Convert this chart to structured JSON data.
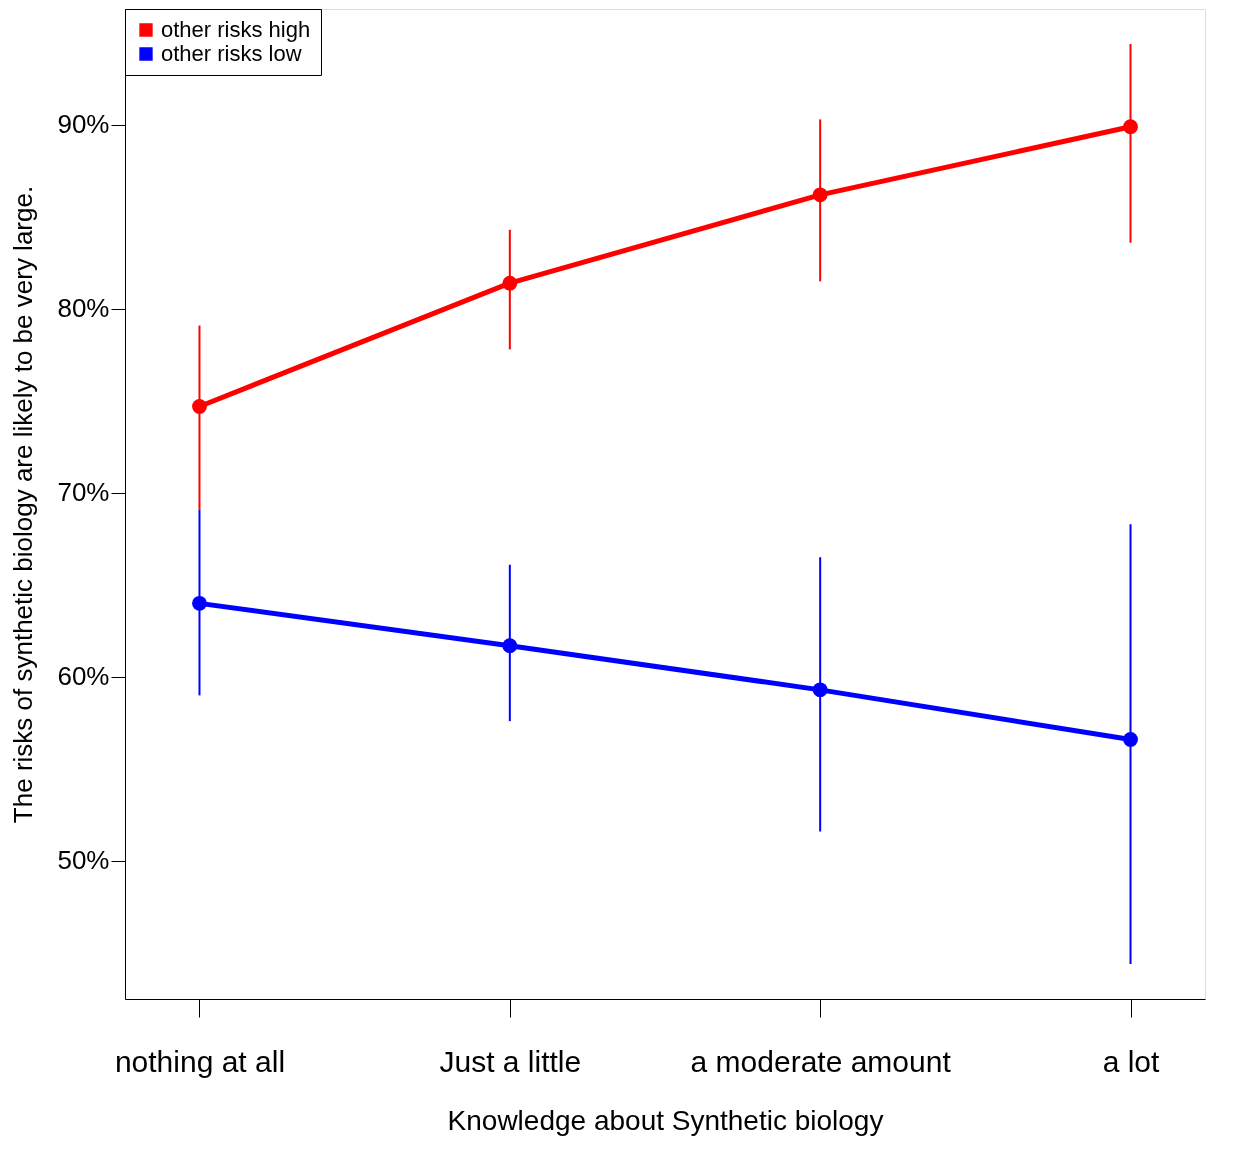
{
  "chart_data": {
    "type": "line",
    "xlabel": "Knowledge about Synthetic biology",
    "ylabel": "The risks of synthetic biology are likely to be very large.",
    "categories": [
      "nothing at all",
      "Just a little",
      "a moderate amount",
      "a lot"
    ],
    "series": [
      {
        "name": "other risks high",
        "color": "#ff0000",
        "values": [
          74.7,
          81.4,
          86.2,
          89.9
        ],
        "errors": [
          [
            69.1,
            79.1
          ],
          [
            77.8,
            84.3
          ],
          [
            81.5,
            90.3
          ],
          [
            83.6,
            94.4
          ]
        ]
      },
      {
        "name": "other risks low",
        "color": "#0000ff",
        "values": [
          64.0,
          61.7,
          59.3,
          56.6
        ],
        "errors": [
          [
            59.0,
            69.1
          ],
          [
            57.6,
            66.1
          ],
          [
            51.6,
            66.5
          ],
          [
            44.4,
            68.3
          ]
        ]
      }
    ],
    "ylim": [
      42.5,
      96.3
    ],
    "yticks": [
      {
        "value": 50,
        "label": "50%"
      },
      {
        "value": 60,
        "label": "60%"
      },
      {
        "value": 70,
        "label": "70%"
      },
      {
        "value": 80,
        "label": "80%"
      },
      {
        "value": 90,
        "label": "90%"
      }
    ],
    "grid": false,
    "legend": "top left",
    "marker": "circle",
    "line_style": "solid"
  }
}
